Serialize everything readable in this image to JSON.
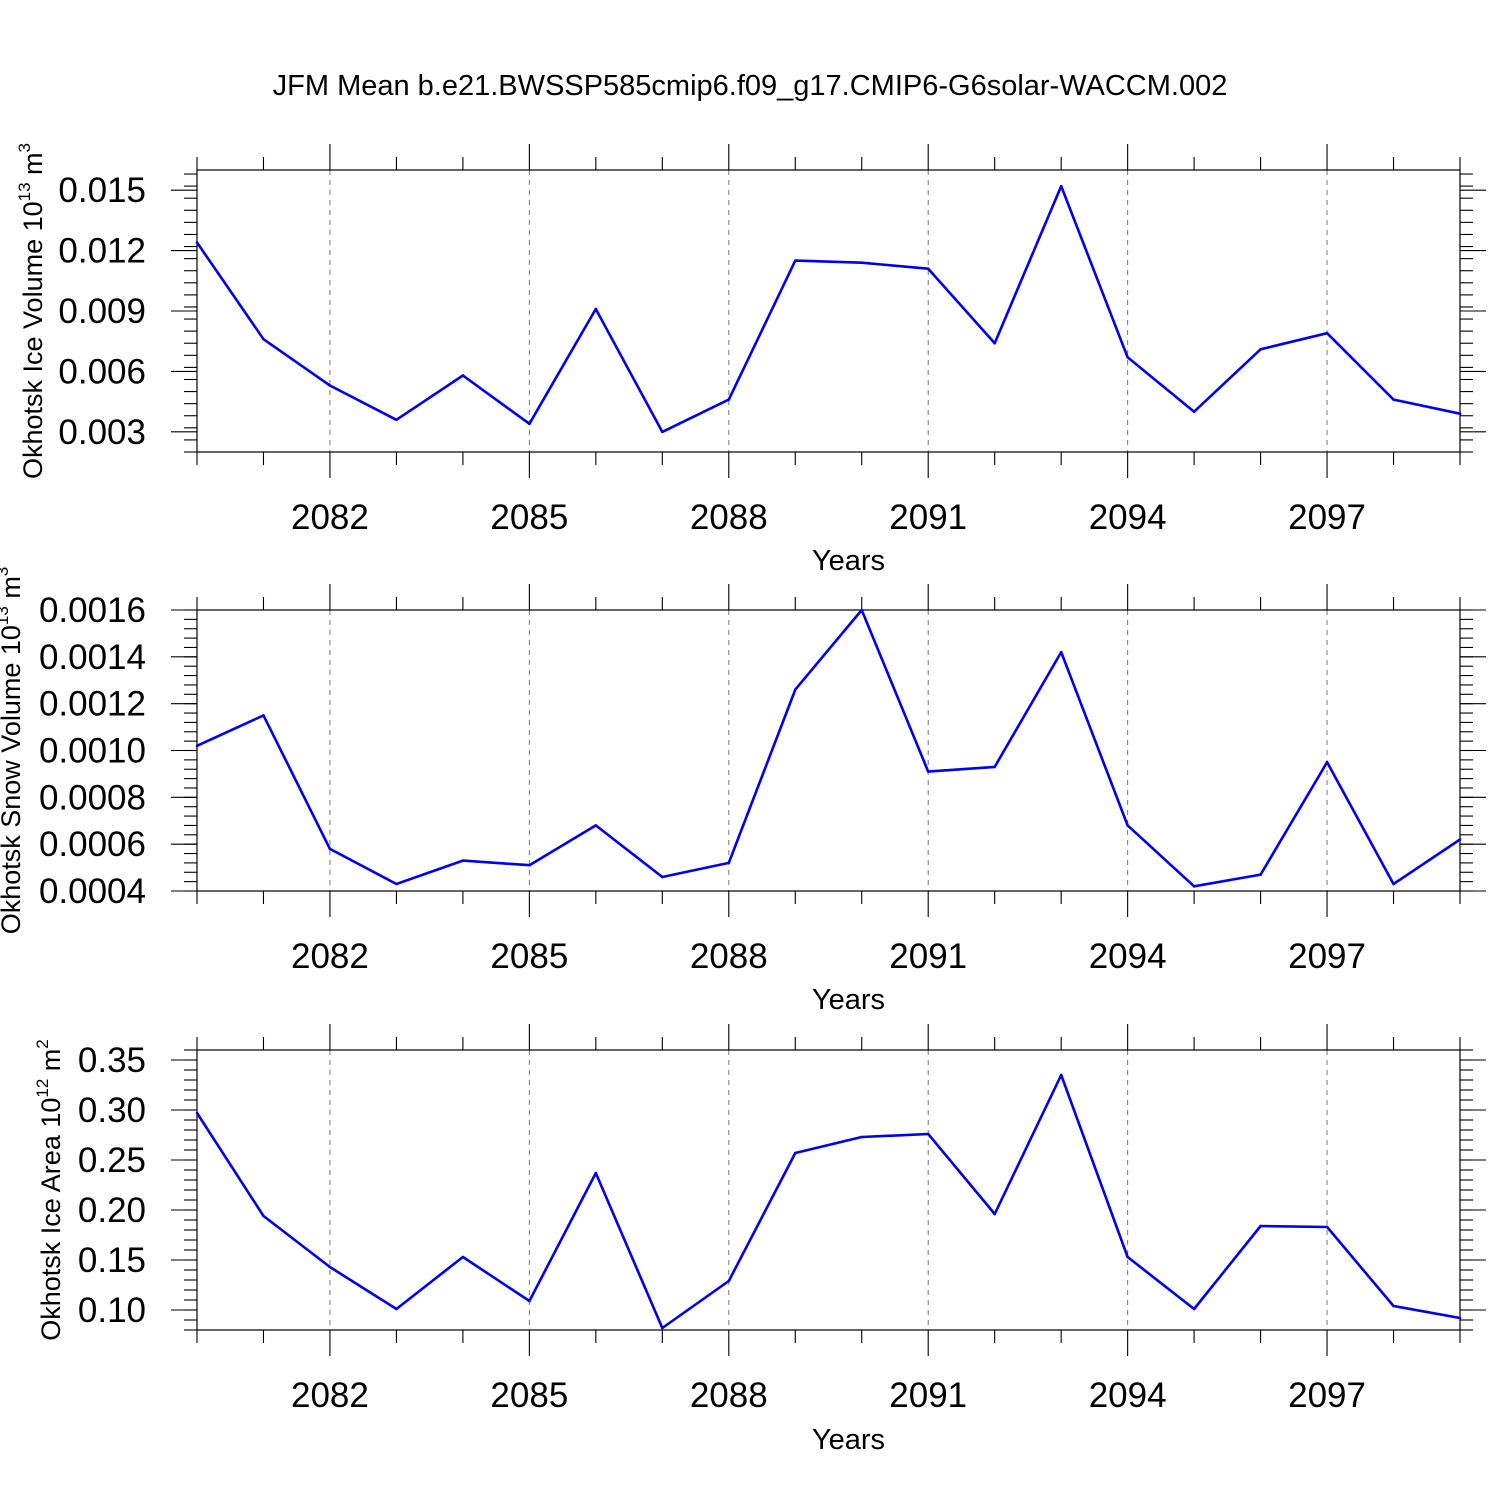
{
  "title": "JFM Mean b.e21.BWSSP585cmip6.f09_g17.CMIP6-G6solar-WACCM.002",
  "colors": {
    "series": "#0000ee",
    "axis": "#000000",
    "grid": "#777777"
  },
  "chart_data": [
    {
      "type": "line",
      "xlabel": "Years",
      "ylabel": {
        "text": "Okhotsk Ice Volume 10",
        "exp": "13",
        "unit": " m",
        "unit_exp": "3"
      },
      "x": [
        2080,
        2081,
        2082,
        2083,
        2084,
        2085,
        2086,
        2087,
        2088,
        2089,
        2090,
        2091,
        2092,
        2093,
        2094,
        2095,
        2096,
        2097,
        2098,
        2099
      ],
      "values": [
        0.0124,
        0.0076,
        0.0053,
        0.0036,
        0.0058,
        0.0034,
        0.0091,
        0.003,
        0.0046,
        0.0115,
        0.0114,
        0.0111,
        0.0074,
        0.0152,
        0.0067,
        0.004,
        0.0071,
        0.0079,
        0.0046,
        0.0039
      ],
      "xlim": [
        2080,
        2099
      ],
      "ylim": [
        0.002,
        0.016
      ],
      "xticks": [
        2082,
        2085,
        2088,
        2091,
        2094,
        2097
      ],
      "xtick_labels": [
        "2082",
        "2085",
        "2088",
        "2091",
        "2094",
        "2097"
      ],
      "yticks": [
        0.003,
        0.006,
        0.009,
        0.012,
        0.015
      ],
      "ytick_labels": [
        "0.003",
        "0.006",
        "0.009",
        "0.012",
        "0.015"
      ],
      "yminor_step": 0.0006,
      "grid": "x-dashed"
    },
    {
      "type": "line",
      "xlabel": "Years",
      "ylabel": {
        "text": "Okhotsk Snow Volume 10",
        "exp": "13",
        "unit": " m",
        "unit_exp": "3"
      },
      "x": [
        2080,
        2081,
        2082,
        2083,
        2084,
        2085,
        2086,
        2087,
        2088,
        2089,
        2090,
        2091,
        2092,
        2093,
        2094,
        2095,
        2096,
        2097,
        2098,
        2099
      ],
      "values": [
        0.00102,
        0.00115,
        0.00058,
        0.00043,
        0.00053,
        0.00051,
        0.00068,
        0.00046,
        0.00052,
        0.00126,
        0.0016,
        0.00091,
        0.00093,
        0.00142,
        0.00068,
        0.00042,
        0.00047,
        0.00095,
        0.00043,
        0.00062
      ],
      "xlim": [
        2080,
        2099
      ],
      "ylim": [
        0.0004,
        0.0016
      ],
      "xticks": [
        2082,
        2085,
        2088,
        2091,
        2094,
        2097
      ],
      "xtick_labels": [
        "2082",
        "2085",
        "2088",
        "2091",
        "2094",
        "2097"
      ],
      "yticks": [
        0.0004,
        0.0006,
        0.0008,
        0.001,
        0.0012,
        0.0014,
        0.0016
      ],
      "ytick_labels": [
        "0.0004",
        "0.0006",
        "0.0008",
        "0.0010",
        "0.0012",
        "0.0014",
        "0.0016"
      ],
      "yminor_step": 4e-05,
      "grid": "x-dashed"
    },
    {
      "type": "line",
      "xlabel": "Years",
      "ylabel": {
        "text": "Okhotsk Ice Area 10",
        "exp": "12",
        "unit": " m",
        "unit_exp": "2"
      },
      "x": [
        2080,
        2081,
        2082,
        2083,
        2084,
        2085,
        2086,
        2087,
        2088,
        2089,
        2090,
        2091,
        2092,
        2093,
        2094,
        2095,
        2096,
        2097,
        2098,
        2099
      ],
      "values": [
        0.297,
        0.194,
        0.143,
        0.101,
        0.153,
        0.109,
        0.237,
        0.082,
        0.129,
        0.257,
        0.273,
        0.276,
        0.196,
        0.335,
        0.153,
        0.101,
        0.184,
        0.183,
        0.104,
        0.092
      ],
      "xlim": [
        2080,
        2099
      ],
      "ylim": [
        0.08,
        0.36
      ],
      "xticks": [
        2082,
        2085,
        2088,
        2091,
        2094,
        2097
      ],
      "xtick_labels": [
        "2082",
        "2085",
        "2088",
        "2091",
        "2094",
        "2097"
      ],
      "yticks": [
        0.1,
        0.15,
        0.2,
        0.25,
        0.3,
        0.35
      ],
      "ytick_labels": [
        "0.10",
        "0.15",
        "0.20",
        "0.25",
        "0.30",
        "0.35"
      ],
      "yminor_step": 0.01,
      "grid": "x-dashed"
    }
  ]
}
